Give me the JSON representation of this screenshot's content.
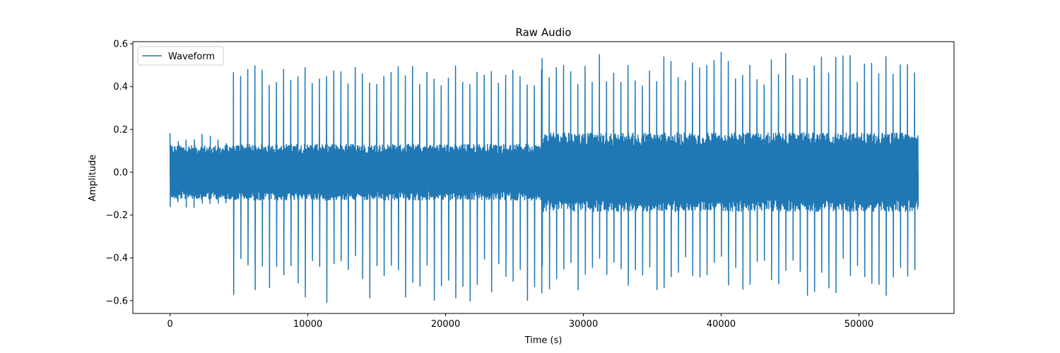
{
  "chart_data": {
    "type": "line",
    "title": "Raw Audio",
    "xlabel": "Time (s)",
    "ylabel": "Amplitude",
    "xlim": [
      -2700,
      56900
    ],
    "ylim": [
      -0.66,
      0.61
    ],
    "xticks": [
      0,
      10000,
      20000,
      30000,
      40000,
      50000
    ],
    "xtick_labels": [
      "0",
      "10000",
      "20000",
      "30000",
      "40000",
      "50000"
    ],
    "yticks": [
      -0.6,
      -0.4,
      -0.2,
      0.0,
      0.2,
      0.4,
      0.6
    ],
    "ytick_labels": [
      "−0.6",
      "−0.4",
      "−0.2",
      "0.0",
      "0.2",
      "0.4",
      "0.6"
    ],
    "grid": false,
    "legend": {
      "position": "top-left",
      "entries": [
        "Waveform"
      ]
    },
    "series": [
      {
        "name": "Waveform",
        "color": "#1f77b4",
        "x_range": [
          0,
          54300
        ],
        "segments": [
          {
            "x_start": 0,
            "x_end": 4600,
            "dense_envelope": [
              -0.12,
              0.12
            ],
            "peak_max": 0.21,
            "peak_min": -0.18
          },
          {
            "x_start": 4600,
            "x_end": 27000,
            "dense_envelope": [
              -0.12,
              0.13
            ],
            "peak_max": 0.5,
            "peak_min": -0.61
          },
          {
            "x_start": 27000,
            "x_end": 54300,
            "dense_envelope": [
              -0.17,
              0.18
            ],
            "peak_max": 0.56,
            "peak_min": -0.58
          }
        ]
      }
    ]
  }
}
